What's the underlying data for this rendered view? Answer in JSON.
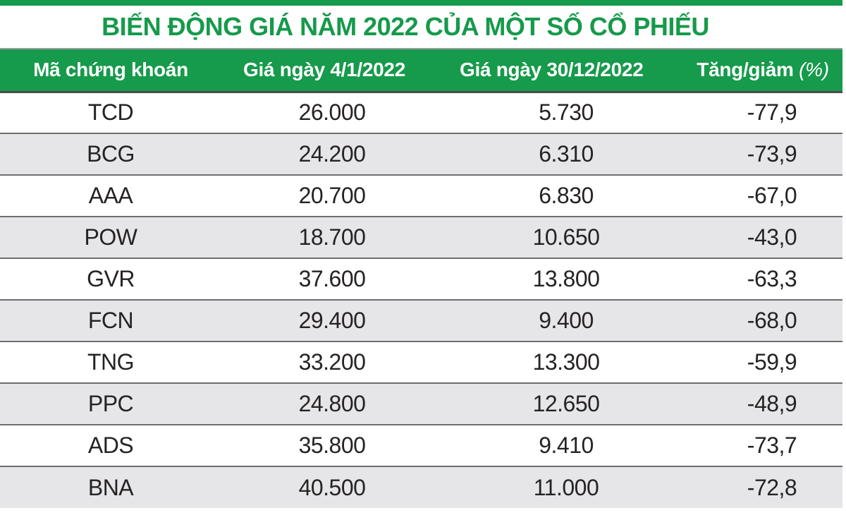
{
  "title": "BIẾN ĐỘNG GIÁ NĂM 2022 CỦA MỘT SỐ CỔ PHIẾU",
  "colors": {
    "accent_green": "#169a4b",
    "row_alt_gray": "#e6e6e8",
    "row_separator": "#6d6e71",
    "text_dark": "#262223",
    "header_text": "#ffffff"
  },
  "table": {
    "headers": {
      "ticker": "Mã chứng khoán",
      "price_start": "Giá ngày 4/1/2022",
      "price_end": "Giá ngày 30/12/2022",
      "change": "Tăng/giảm",
      "change_unit": "(%)"
    },
    "rows": [
      [
        "TCD",
        "26.000",
        "5.730",
        "-77,9"
      ],
      [
        "BCG",
        "24.200",
        "6.310",
        "-73,9"
      ],
      [
        "AAA",
        "20.700",
        "6.830",
        "-67,0"
      ],
      [
        "POW",
        "18.700",
        "10.650",
        "-43,0"
      ],
      [
        "GVR",
        "37.600",
        "13.800",
        "-63,3"
      ],
      [
        "FCN",
        "29.400",
        "9.400",
        "-68,0"
      ],
      [
        "TNG",
        "33.200",
        "13.300",
        "-59,9"
      ],
      [
        "PPC",
        "24.800",
        "12.650",
        "-48,9"
      ],
      [
        "ADS",
        "35.800",
        "9.410",
        "-73,7"
      ],
      [
        "BNA",
        "40.500",
        "11.000",
        "-72,8"
      ]
    ]
  },
  "chart_data": {
    "type": "table",
    "title": "BIẾN ĐỘNG GIÁ NĂM 2022 CỦA MỘT SỐ CỔ PHIẾU",
    "columns": [
      "Mã chứng khoán",
      "Giá ngày 4/1/2022",
      "Giá ngày 30/12/2022",
      "Tăng/giảm (%)"
    ],
    "rows": [
      [
        "TCD",
        26000,
        5730,
        -77.9
      ],
      [
        "BCG",
        24200,
        6310,
        -73.9
      ],
      [
        "AAA",
        20700,
        6830,
        -67.0
      ],
      [
        "POW",
        18700,
        10650,
        -43.0
      ],
      [
        "GVR",
        37600,
        13800,
        -63.3
      ],
      [
        "FCN",
        29400,
        9400,
        -68.0
      ],
      [
        "TNG",
        33200,
        13300,
        -59.9
      ],
      [
        "PPC",
        24800,
        12650,
        -48.9
      ],
      [
        "ADS",
        35800,
        9410,
        -73.7
      ],
      [
        "BNA",
        40500,
        11000,
        -72.8
      ]
    ]
  }
}
